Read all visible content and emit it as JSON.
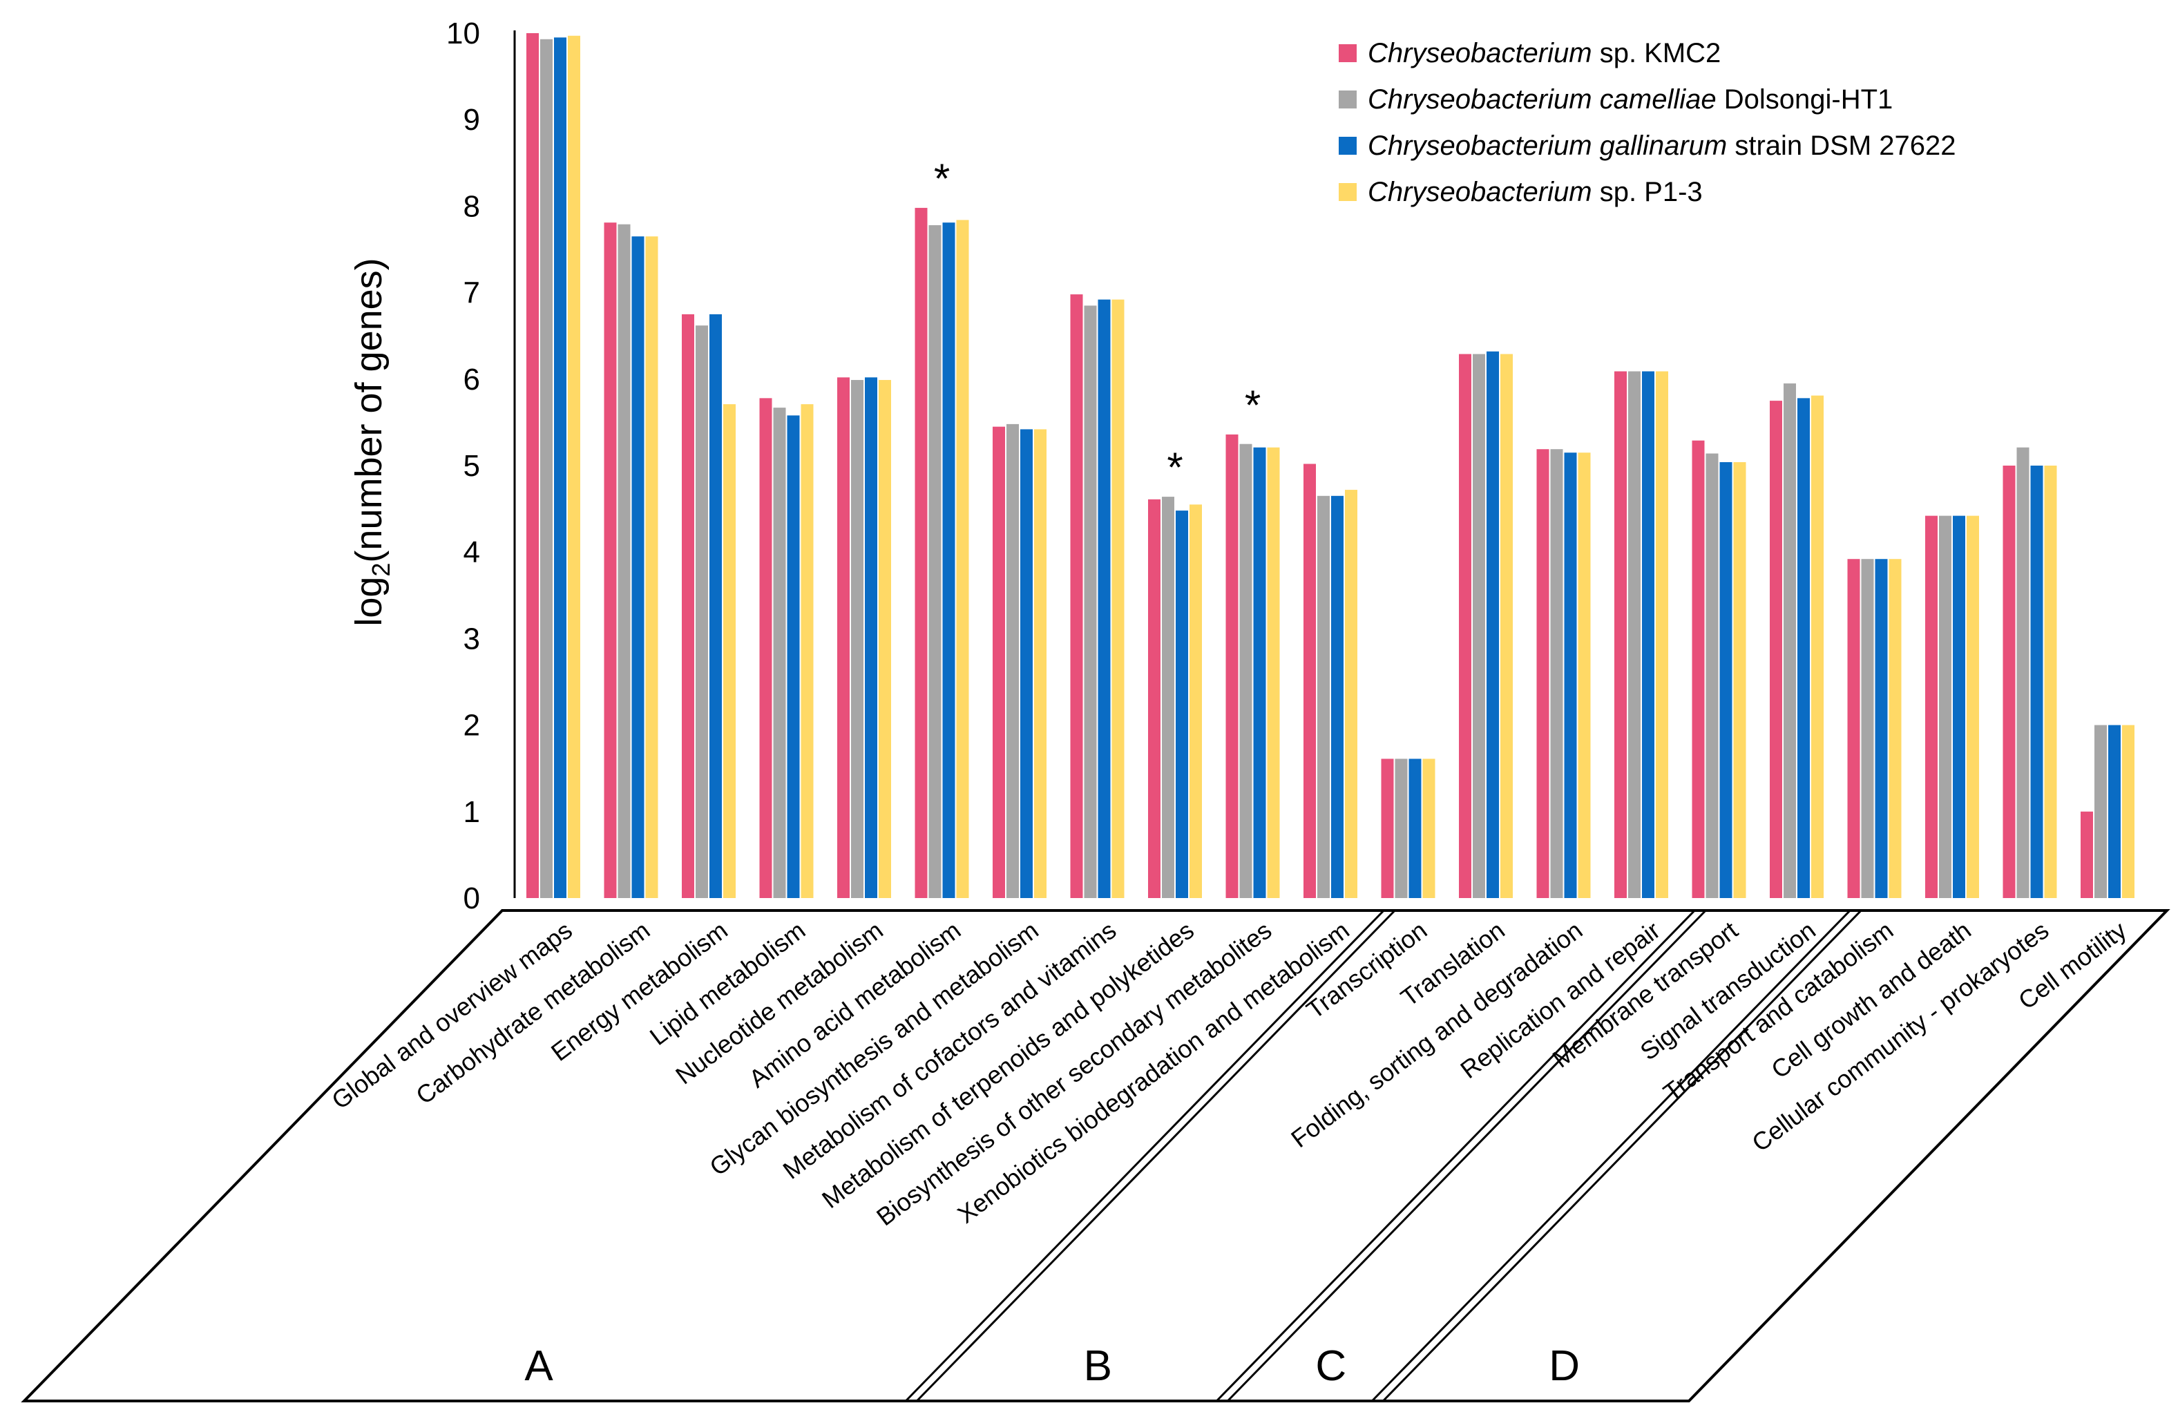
{
  "chart_data": {
    "type": "bar",
    "ylabel": "log2(number of genes)",
    "ylabel_parts": {
      "base": "log",
      "sub": "2",
      "rest": "(number of genes)"
    },
    "ylim": [
      0,
      10
    ],
    "yticks": [
      "0",
      "1",
      "2",
      "3",
      "4",
      "5",
      "6",
      "7",
      "8",
      "9",
      "10"
    ],
    "grid": false,
    "legend_position": "top-right",
    "categories": [
      "Global and overview maps",
      "Carbohydrate metabolism",
      "Energy metabolism",
      "Lipid metabolism",
      "Nucleotide metabolism",
      "Amino acid metabolism",
      "Glycan biosynthesis and metabolism",
      "Metabolism of cofactors and vitamins",
      "Metabolism of terpenoids and polyketides",
      "Biosynthesis of other secondary metabolites",
      "Xenobiotics biodegradation and metabolism",
      "Transcription",
      "Translation",
      "Folding, sorting and degradation",
      "Replication and repair",
      "Membrane transport",
      "Signal transduction",
      "Transport and catabolism",
      "Cell growth and death",
      "Cellular community - prokaryotes",
      "Cell motility"
    ],
    "series": [
      {
        "name": "Chryseobacterium sp. KMC2",
        "name_italic": "Chryseobacterium",
        "name_rest": " sp. KMC2",
        "color": "#E8507A",
        "values": [
          10.0,
          7.81,
          6.75,
          5.78,
          6.02,
          7.98,
          5.45,
          6.98,
          4.61,
          5.36,
          5.02,
          1.61,
          6.29,
          5.19,
          6.09,
          5.29,
          5.75,
          3.92,
          4.42,
          5.0,
          1.0
        ]
      },
      {
        "name": "Chryseobacterium camelliae Dolsongi-HT1",
        "name_italic": "Chryseobacterium camelliae",
        "name_rest": " Dolsongi-HT1",
        "color": "#A6A6A6",
        "values": [
          9.93,
          7.79,
          6.62,
          5.67,
          5.99,
          7.78,
          5.48,
          6.85,
          4.64,
          5.25,
          4.65,
          1.61,
          6.29,
          5.19,
          6.09,
          5.14,
          5.95,
          3.92,
          4.42,
          5.21,
          2.0
        ]
      },
      {
        "name": "Chryseobacterium gallinarum strain DSM 27622",
        "name_italic": "Chryseobacterium gallinarum",
        "name_rest": " strain DSM 27622",
        "color": "#0A6CC4",
        "values": [
          9.95,
          7.65,
          6.75,
          5.58,
          6.02,
          7.81,
          5.42,
          6.92,
          4.48,
          5.21,
          4.65,
          1.61,
          6.32,
          5.15,
          6.09,
          5.04,
          5.78,
          3.92,
          4.42,
          5.0,
          2.0
        ]
      },
      {
        "name": "Chryseobacterium sp. P1-3",
        "name_italic": "Chryseobacterium",
        "name_rest": " sp. P1-3",
        "color": "#FFD966",
        "values": [
          9.97,
          7.65,
          5.71,
          5.71,
          5.99,
          7.84,
          5.42,
          6.92,
          4.55,
          5.21,
          4.72,
          1.61,
          6.29,
          5.15,
          6.09,
          5.04,
          5.81,
          3.92,
          4.42,
          5.0,
          2.0
        ]
      }
    ],
    "annotations": [
      {
        "text": "*",
        "category_index": 5
      },
      {
        "text": "*",
        "category_index": 8
      },
      {
        "text": "*",
        "category_index": 9
      }
    ],
    "groups": [
      {
        "label": "A",
        "start": 0,
        "end": 10
      },
      {
        "label": "B",
        "start": 11,
        "end": 14
      },
      {
        "label": "C",
        "start": 15,
        "end": 16
      },
      {
        "label": "D",
        "start": 17,
        "end": 20
      }
    ]
  }
}
